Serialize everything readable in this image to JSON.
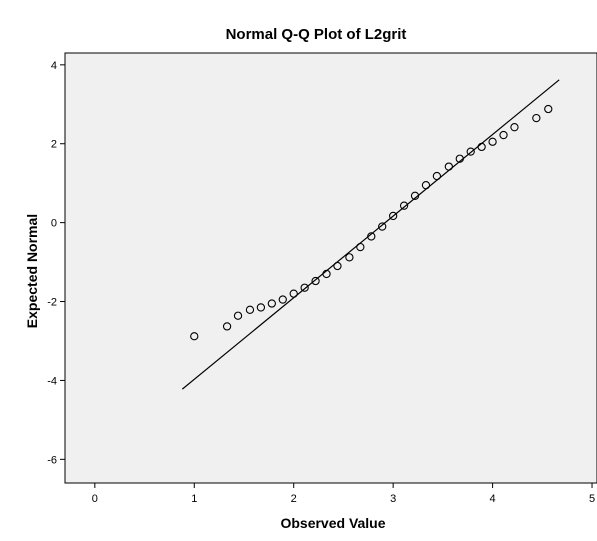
{
  "chart_data": {
    "type": "scatter",
    "title": "Normal Q-Q Plot of L2grit",
    "xlabel": "Observed Value",
    "ylabel": "Expected Normal",
    "xlim": [
      -0.3,
      5.05
    ],
    "ylim": [
      -6.6,
      4.3
    ],
    "x_ticks": [
      0,
      1,
      2,
      3,
      4,
      5
    ],
    "y_ticks": [
      4,
      2,
      0,
      -2,
      -4,
      -6
    ],
    "grid": false,
    "colors": {
      "plot_background": "#f0f0f0",
      "marker": "#000000",
      "line": "#000000"
    },
    "series": [
      {
        "x": [
          1.0,
          1.33,
          1.44,
          1.56,
          1.67,
          1.78,
          1.89,
          2.0,
          2.11,
          2.22,
          2.33,
          2.44,
          2.56,
          2.67,
          2.78,
          2.89,
          3.0,
          3.11,
          3.22,
          3.33,
          3.44,
          3.56,
          3.67,
          3.78,
          3.89,
          4.0,
          4.11,
          4.22,
          4.44,
          4.56
        ],
        "y": [
          -2.88,
          -2.63,
          -2.36,
          -2.21,
          -2.15,
          -2.05,
          -1.95,
          -1.8,
          -1.65,
          -1.48,
          -1.3,
          -1.1,
          -0.88,
          -0.62,
          -0.35,
          -0.1,
          0.17,
          0.43,
          0.68,
          0.95,
          1.18,
          1.42,
          1.62,
          1.8,
          1.92,
          2.05,
          2.22,
          2.42,
          2.65,
          2.88
        ]
      }
    ],
    "reference_line": {
      "x": [
        0.88,
        4.67
      ],
      "y": [
        -4.22,
        3.62
      ]
    }
  }
}
